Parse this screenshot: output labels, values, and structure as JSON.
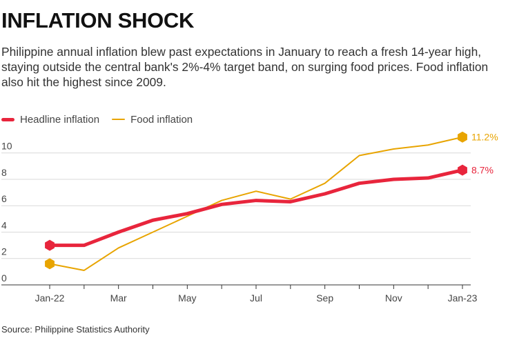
{
  "title": "INFLATION SHOCK",
  "subtitle": "Philippine annual inflation blew past expectations in January to reach a fresh 14-year high, staying outside the central bank's 2%-4% target band, on surging food prices. Food inflation also hit the highest since 2009.",
  "source": "Source: Philippine Statistics Authority",
  "colors": {
    "headline": "#e8253c",
    "food": "#e8a400",
    "grid": "#d9d9d9",
    "axis": "#333333"
  },
  "chart_data": {
    "type": "line",
    "x": [
      "Jan-22",
      "Feb-22",
      "Mar-22",
      "Apr-22",
      "May-22",
      "Jun-22",
      "Jul-22",
      "Aug-22",
      "Sep-22",
      "Oct-22",
      "Nov-22",
      "Dec-22",
      "Jan-23"
    ],
    "tick_labels": [
      "Jan-22",
      "",
      "Mar",
      "",
      "May",
      "",
      "Jul",
      "",
      "Sep",
      "",
      "Nov",
      "",
      "Jan-23"
    ],
    "y_ticks": [
      0,
      2,
      4,
      6,
      8,
      10
    ],
    "ylim": [
      0,
      11.5
    ],
    "series": [
      {
        "name": "Headline inflation",
        "key": "headline",
        "values": [
          3.0,
          3.0,
          4.0,
          4.9,
          5.4,
          6.1,
          6.4,
          6.3,
          6.9,
          7.7,
          8.0,
          8.1,
          8.7
        ],
        "end_label": "8.7%"
      },
      {
        "name": "Food inflation",
        "key": "food",
        "values": [
          1.6,
          1.1,
          2.8,
          4.0,
          5.2,
          6.4,
          7.1,
          6.5,
          7.7,
          9.8,
          10.3,
          10.6,
          11.2
        ],
        "end_label": "11.2%"
      }
    ],
    "grid": true,
    "legend": "top-left"
  }
}
